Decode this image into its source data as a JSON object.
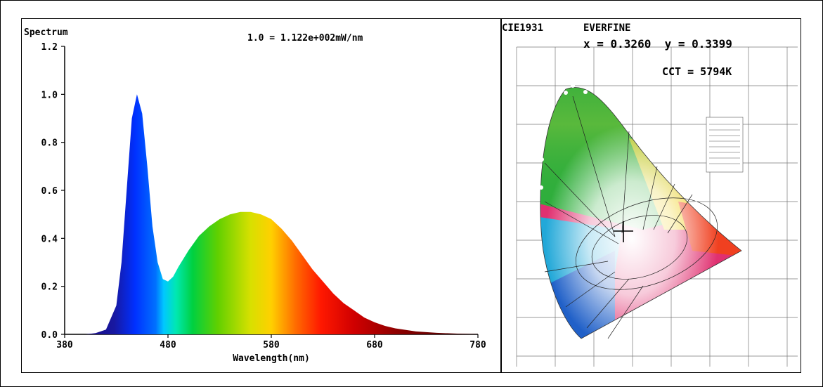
{
  "spectrum_chart": {
    "title": "Spectrum",
    "scale_note": "1.0 = 1.122e+002mW/nm",
    "xlabel": "Wavelength(nm)",
    "x_ticks": [
      "380",
      "480",
      "580",
      "680",
      "780"
    ],
    "y_ticks": [
      "0.0",
      "0.2",
      "0.4",
      "0.6",
      "0.8",
      "1.0",
      "1.2"
    ]
  },
  "cie_panel": {
    "standard": "CIE1931",
    "brand": "EVERFINE",
    "coords": "x = 0.3260  y = 0.3399",
    "cct": "CCT = 5794K"
  },
  "chart_data": {
    "type": "area",
    "title": "Spectrum",
    "xlabel": "Wavelength(nm)",
    "ylabel": "",
    "xlim": [
      380,
      780
    ],
    "ylim": [
      0,
      1.2
    ],
    "grid": false,
    "x": [
      380,
      390,
      400,
      410,
      420,
      430,
      435,
      440,
      445,
      450,
      455,
      460,
      465,
      470,
      475,
      480,
      485,
      490,
      500,
      510,
      520,
      530,
      540,
      550,
      560,
      570,
      580,
      590,
      600,
      610,
      620,
      630,
      640,
      650,
      660,
      670,
      680,
      690,
      700,
      720,
      740,
      760,
      780
    ],
    "values": [
      0.0,
      0.0,
      0.0,
      0.005,
      0.02,
      0.12,
      0.3,
      0.6,
      0.9,
      1.0,
      0.92,
      0.7,
      0.45,
      0.3,
      0.23,
      0.22,
      0.24,
      0.28,
      0.35,
      0.41,
      0.45,
      0.48,
      0.5,
      0.51,
      0.51,
      0.5,
      0.48,
      0.44,
      0.39,
      0.33,
      0.27,
      0.22,
      0.17,
      0.13,
      0.1,
      0.07,
      0.05,
      0.035,
      0.025,
      0.012,
      0.006,
      0.003,
      0.001
    ]
  }
}
